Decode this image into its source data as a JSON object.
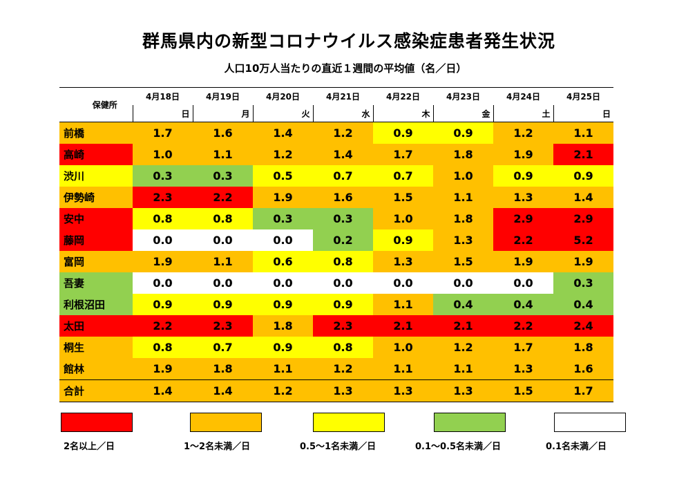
{
  "title": "群馬県内の新型コロナウイルス感染症患者発生状況",
  "subtitle": "人口10万人当たりの直近１週間の平均値（名／日）",
  "table": {
    "location_header": "保健所",
    "dates": [
      "4月18日",
      "4月19日",
      "4月20日",
      "4月21日",
      "4月22日",
      "4月23日",
      "4月24日",
      "4月25日"
    ],
    "weekdays": [
      "日",
      "月",
      "火",
      "水",
      "木",
      "金",
      "土",
      "日"
    ],
    "rows": [
      {
        "name": "前橋",
        "loc_color": "#ffc000",
        "values": [
          "1.7",
          "1.6",
          "1.4",
          "1.2",
          "0.9",
          "0.9",
          "1.2",
          "1.1"
        ],
        "colors": [
          "#ffc000",
          "#ffc000",
          "#ffc000",
          "#ffc000",
          "#ffff00",
          "#ffff00",
          "#ffc000",
          "#ffc000"
        ]
      },
      {
        "name": "高崎",
        "loc_color": "#ff0000",
        "values": [
          "1.0",
          "1.1",
          "1.2",
          "1.4",
          "1.7",
          "1.8",
          "1.9",
          "2.1"
        ],
        "colors": [
          "#ffc000",
          "#ffc000",
          "#ffc000",
          "#ffc000",
          "#ffc000",
          "#ffc000",
          "#ffc000",
          "#ff0000"
        ]
      },
      {
        "name": "渋川",
        "loc_color": "#ffff00",
        "values": [
          "0.3",
          "0.3",
          "0.5",
          "0.7",
          "0.7",
          "1.0",
          "0.9",
          "0.9"
        ],
        "colors": [
          "#92d050",
          "#92d050",
          "#ffff00",
          "#ffff00",
          "#ffff00",
          "#ffc000",
          "#ffff00",
          "#ffff00"
        ]
      },
      {
        "name": "伊勢崎",
        "loc_color": "#ffc000",
        "values": [
          "2.3",
          "2.2",
          "1.9",
          "1.6",
          "1.5",
          "1.1",
          "1.3",
          "1.4"
        ],
        "colors": [
          "#ff0000",
          "#ff0000",
          "#ffc000",
          "#ffc000",
          "#ffc000",
          "#ffc000",
          "#ffc000",
          "#ffc000"
        ]
      },
      {
        "name": "安中",
        "loc_color": "#ff0000",
        "values": [
          "0.8",
          "0.8",
          "0.3",
          "0.3",
          "1.0",
          "1.8",
          "2.9",
          "2.9"
        ],
        "colors": [
          "#ffff00",
          "#ffff00",
          "#92d050",
          "#92d050",
          "#ffc000",
          "#ffc000",
          "#ff0000",
          "#ff0000"
        ]
      },
      {
        "name": "藤岡",
        "loc_color": "#ff0000",
        "values": [
          "0.0",
          "0.0",
          "0.0",
          "0.2",
          "0.9",
          "1.3",
          "2.2",
          "5.2"
        ],
        "colors": [
          "#ffffff",
          "#ffffff",
          "#ffffff",
          "#92d050",
          "#ffff00",
          "#ffc000",
          "#ff0000",
          "#ff0000"
        ]
      },
      {
        "name": "富岡",
        "loc_color": "#ffc000",
        "values": [
          "1.9",
          "1.1",
          "0.6",
          "0.8",
          "1.3",
          "1.5",
          "1.9",
          "1.9"
        ],
        "colors": [
          "#ffc000",
          "#ffc000",
          "#ffff00",
          "#ffff00",
          "#ffc000",
          "#ffc000",
          "#ffc000",
          "#ffc000"
        ]
      },
      {
        "name": "吾妻",
        "loc_color": "#92d050",
        "values": [
          "0.0",
          "0.0",
          "0.0",
          "0.0",
          "0.0",
          "0.0",
          "0.0",
          "0.3"
        ],
        "colors": [
          "#ffffff",
          "#ffffff",
          "#ffffff",
          "#ffffff",
          "#ffffff",
          "#ffffff",
          "#ffffff",
          "#92d050"
        ]
      },
      {
        "name": "利根沼田",
        "loc_color": "#92d050",
        "values": [
          "0.9",
          "0.9",
          "0.9",
          "0.9",
          "1.1",
          "0.4",
          "0.4",
          "0.4"
        ],
        "colors": [
          "#ffff00",
          "#ffff00",
          "#ffff00",
          "#ffff00",
          "#ffc000",
          "#92d050",
          "#92d050",
          "#92d050"
        ]
      },
      {
        "name": "太田",
        "loc_color": "#ff0000",
        "values": [
          "2.2",
          "2.3",
          "1.8",
          "2.3",
          "2.1",
          "2.1",
          "2.2",
          "2.4"
        ],
        "colors": [
          "#ff0000",
          "#ff0000",
          "#ffc000",
          "#ff0000",
          "#ff0000",
          "#ff0000",
          "#ff0000",
          "#ff0000"
        ]
      },
      {
        "name": "桐生",
        "loc_color": "#ffc000",
        "values": [
          "0.8",
          "0.7",
          "0.9",
          "0.8",
          "1.0",
          "1.2",
          "1.7",
          "1.8"
        ],
        "colors": [
          "#ffff00",
          "#ffff00",
          "#ffff00",
          "#ffff00",
          "#ffc000",
          "#ffc000",
          "#ffc000",
          "#ffc000"
        ]
      },
      {
        "name": "館林",
        "loc_color": "#ffc000",
        "values": [
          "1.9",
          "1.8",
          "1.1",
          "1.2",
          "1.1",
          "1.1",
          "1.3",
          "1.6"
        ],
        "colors": [
          "#ffc000",
          "#ffc000",
          "#ffc000",
          "#ffc000",
          "#ffc000",
          "#ffc000",
          "#ffc000",
          "#ffc000"
        ]
      }
    ],
    "total": {
      "name": "合計",
      "loc_color": "#ffc000",
      "values": [
        "1.4",
        "1.4",
        "1.2",
        "1.3",
        "1.3",
        "1.3",
        "1.5",
        "1.7"
      ],
      "colors": [
        "#ffc000",
        "#ffc000",
        "#ffc000",
        "#ffc000",
        "#ffc000",
        "#ffc000",
        "#ffc000",
        "#ffc000"
      ]
    }
  },
  "legend": [
    {
      "label": "2名以上／日",
      "color": "#ff0000"
    },
    {
      "label": "1～2名未満／日",
      "color": "#ffc000"
    },
    {
      "label": "0.5～1名未満／日",
      "color": "#ffff00"
    },
    {
      "label": "0.1～0.5名未満／日",
      "color": "#92d050"
    },
    {
      "label": "0.1名未満／日",
      "color": "#ffffff"
    }
  ]
}
